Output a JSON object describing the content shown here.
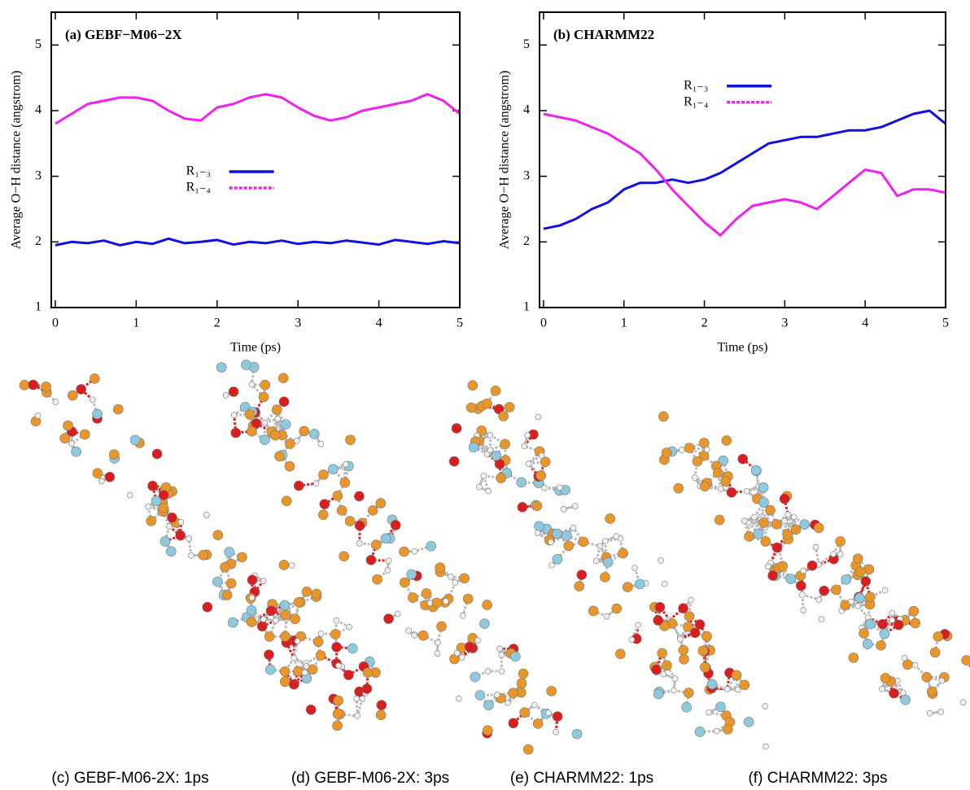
{
  "chart_data": [
    {
      "type": "line",
      "title": "(a) GEBF−M06−2X",
      "x_label": "Time (ps)",
      "y_label": "Average O−H distance (angstrom)",
      "x": [
        0,
        0.2,
        0.4,
        0.6,
        0.8,
        1.0,
        1.2,
        1.4,
        1.6,
        1.8,
        2.0,
        2.2,
        2.4,
        2.6,
        2.8,
        3.0,
        3.2,
        3.4,
        3.6,
        3.8,
        4.0,
        4.2,
        4.4,
        4.6,
        4.8,
        5.0
      ],
      "series": [
        {
          "name": "R₁₋₃",
          "color": "#1010e0",
          "values": [
            1.95,
            2.0,
            1.98,
            2.02,
            1.95,
            2.0,
            1.97,
            2.05,
            1.98,
            2.0,
            2.03,
            1.96,
            2.0,
            1.98,
            2.02,
            1.97,
            2.0,
            1.98,
            2.02,
            1.99,
            1.96,
            2.03,
            2.0,
            1.97,
            2.01,
            1.98
          ]
        },
        {
          "name": "R₁₋₄",
          "color": "#ee22ee",
          "values": [
            3.8,
            3.95,
            4.1,
            4.15,
            4.2,
            4.2,
            4.15,
            4.0,
            3.88,
            3.85,
            4.05,
            4.1,
            4.2,
            4.25,
            4.2,
            4.05,
            3.92,
            3.85,
            3.9,
            4.0,
            4.05,
            4.1,
            4.15,
            4.25,
            4.15,
            3.95
          ]
        }
      ],
      "xlim": [
        -0.05,
        5
      ],
      "ylim": [
        1,
        5.5
      ],
      "xticks": [
        0,
        1,
        2,
        3,
        4,
        5
      ],
      "yticks": [
        1,
        2,
        3,
        4,
        5
      ],
      "legend": "center"
    },
    {
      "type": "line",
      "title": "(b) CHARMM22",
      "x_label": "Time (ps)",
      "y_label": "Average O−H distance (angstrom)",
      "x": [
        0,
        0.2,
        0.4,
        0.6,
        0.8,
        1.0,
        1.2,
        1.4,
        1.6,
        1.8,
        2.0,
        2.2,
        2.4,
        2.6,
        2.8,
        3.0,
        3.2,
        3.4,
        3.6,
        3.8,
        4.0,
        4.2,
        4.4,
        4.6,
        4.8,
        5.0
      ],
      "series": [
        {
          "name": "R₁₋₃",
          "color": "#1010e0",
          "values": [
            2.2,
            2.25,
            2.35,
            2.5,
            2.6,
            2.8,
            2.9,
            2.9,
            2.95,
            2.9,
            2.95,
            3.05,
            3.2,
            3.35,
            3.5,
            3.55,
            3.6,
            3.6,
            3.65,
            3.7,
            3.7,
            3.75,
            3.85,
            3.95,
            4.0,
            3.8
          ]
        },
        {
          "name": "R₁₋₄",
          "color": "#ee22ee",
          "values": [
            3.95,
            3.9,
            3.85,
            3.75,
            3.65,
            3.5,
            3.35,
            3.1,
            2.8,
            2.55,
            2.3,
            2.1,
            2.35,
            2.55,
            2.6,
            2.65,
            2.6,
            2.5,
            2.7,
            2.9,
            3.1,
            3.05,
            2.7,
            2.8,
            2.8,
            2.75
          ]
        }
      ],
      "xlim": [
        -0.05,
        5
      ],
      "ylim": [
        1,
        5.5
      ],
      "xticks": [
        0,
        1,
        2,
        3,
        4,
        5
      ],
      "yticks": [
        1,
        2,
        3,
        4,
        5
      ],
      "legend": "upper center"
    }
  ],
  "panels": [
    {
      "caption": "(c) GEBF-M06-2X: 1ps"
    },
    {
      "caption": "(d) GEBF-M06-2X: 3ps"
    },
    {
      "caption": "(e) CHARMM22: 1ps"
    },
    {
      "caption": "(f) CHARMM22: 3ps"
    }
  ]
}
